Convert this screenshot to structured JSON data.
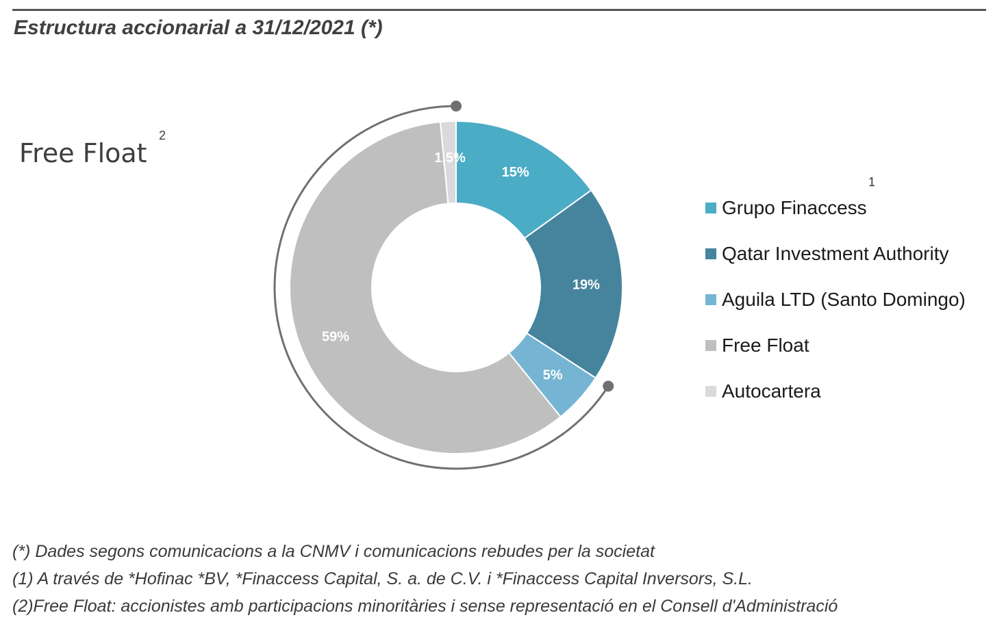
{
  "title": "Estructura accionarial a 31/12/2021 (*)",
  "free_float_label": "Free Float",
  "free_float_sup": "2",
  "chart_data": {
    "type": "pie",
    "style": "donut",
    "start_angle_deg": 0,
    "direction": "clockwise",
    "slices": [
      {
        "name": "Grupo Finaccess",
        "value": 15,
        "label": "15%",
        "color": "#4BACC6",
        "footnote": "1"
      },
      {
        "name": "Qatar Investment Authority",
        "value": 19,
        "label": "19%",
        "color": "#46849E"
      },
      {
        "name": "Aguila LTD (Santo Domingo)",
        "value": 5,
        "label": "5%",
        "color": "#75B5D3"
      },
      {
        "name": "Free Float",
        "value": 59,
        "label": "59%",
        "color": "#BFBFBF"
      },
      {
        "name": "Autocartera",
        "value": 1.5,
        "label": "1,5%",
        "color": "#DADADA"
      }
    ],
    "legend_position": "right",
    "label_color": "#FFFFFF",
    "bracket": {
      "label": "Free Float",
      "spans": [
        "Aguila LTD (Santo Domingo)",
        "Free Float",
        "Autocartera"
      ],
      "color": "#707070"
    }
  },
  "notes": [
    "(*) Dades segons comunicacions a la CNMV i comunicacions rebudes per la societat",
    "(1) A través de *Hofinac *BV, *Finaccess Capital, S. a. de C.V. i *Finaccess Capital Inversors, S.L.",
    "(2)Free Float: accionistes amb participacions minoritàries i sense representació en el Consell d'Administració"
  ]
}
